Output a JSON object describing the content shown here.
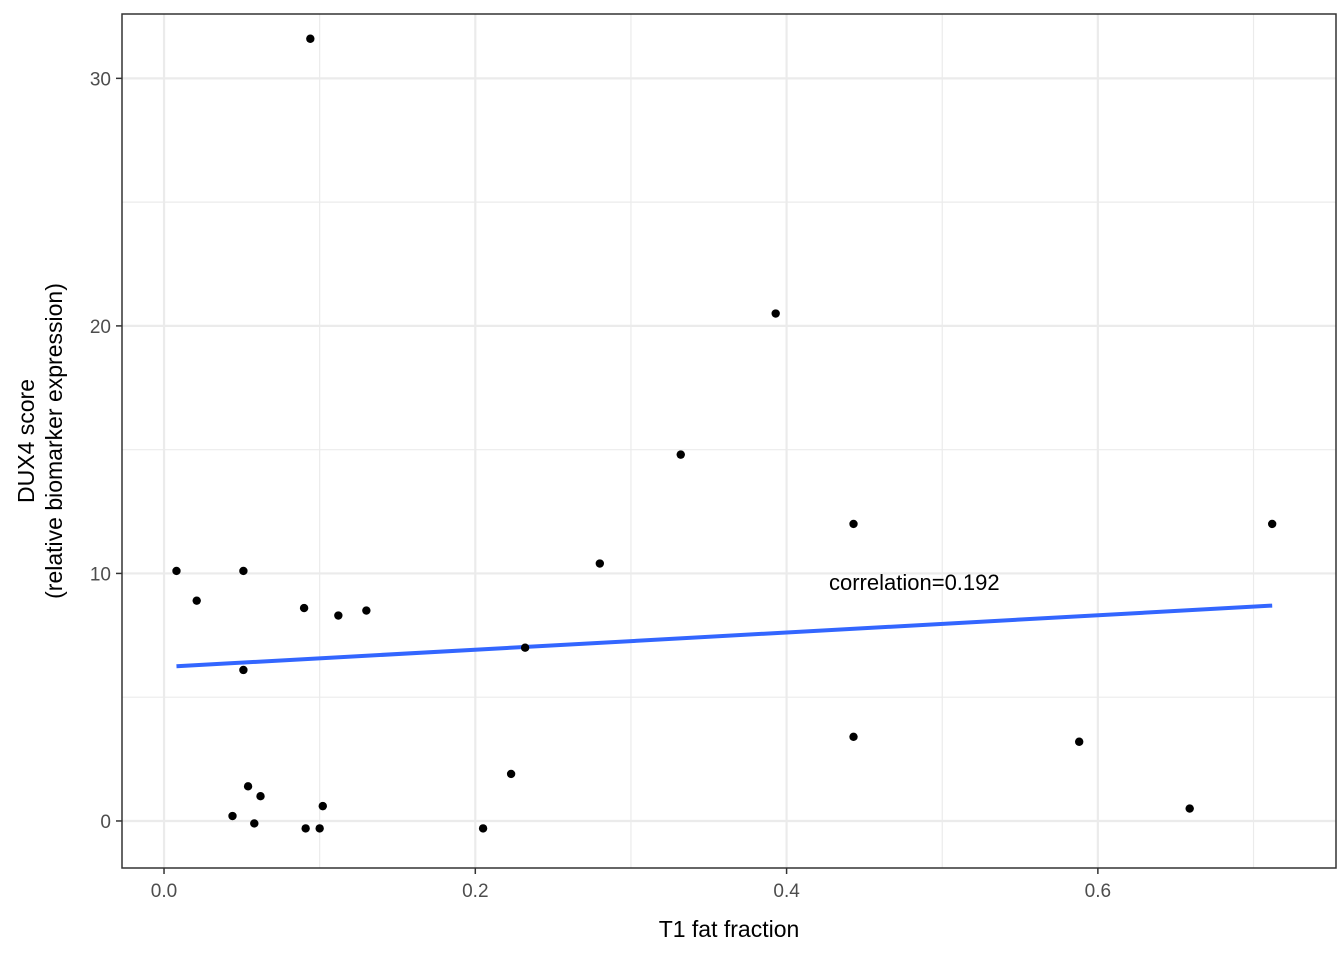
{
  "chart_data": {
    "type": "scatter",
    "xlabel": "T1 fat fraction",
    "ylabel_line1": "DUX4 score",
    "ylabel_line2": "(relative biomarker expression)",
    "annotation": "correlation=0.192",
    "x_ticks": [
      0.0,
      0.2,
      0.4,
      0.6
    ],
    "x_tick_labels": [
      "0.0",
      "0.2",
      "0.4",
      "0.6"
    ],
    "y_ticks": [
      0,
      10,
      20,
      30
    ],
    "y_tick_labels": [
      "0",
      "10",
      "20",
      "30"
    ],
    "xlim": [
      -0.027,
      0.753
    ],
    "ylim": [
      -1.9,
      32.6
    ],
    "grid": true,
    "points": [
      {
        "x": 0.008,
        "y": 10.1
      },
      {
        "x": 0.021,
        "y": 8.9
      },
      {
        "x": 0.044,
        "y": 0.2
      },
      {
        "x": 0.051,
        "y": 10.1
      },
      {
        "x": 0.051,
        "y": 6.1
      },
      {
        "x": 0.054,
        "y": 1.4
      },
      {
        "x": 0.058,
        "y": -0.1
      },
      {
        "x": 0.062,
        "y": 1.0
      },
      {
        "x": 0.09,
        "y": 8.6
      },
      {
        "x": 0.091,
        "y": -0.3
      },
      {
        "x": 0.094,
        "y": 31.6
      },
      {
        "x": 0.1,
        "y": -0.3
      },
      {
        "x": 0.102,
        "y": 0.6
      },
      {
        "x": 0.112,
        "y": 8.3
      },
      {
        "x": 0.13,
        "y": 8.5
      },
      {
        "x": 0.205,
        "y": -0.3
      },
      {
        "x": 0.223,
        "y": 1.9
      },
      {
        "x": 0.232,
        "y": 7.0
      },
      {
        "x": 0.28,
        "y": 10.4
      },
      {
        "x": 0.332,
        "y": 14.8
      },
      {
        "x": 0.393,
        "y": 20.5
      },
      {
        "x": 0.443,
        "y": 12.0
      },
      {
        "x": 0.443,
        "y": 3.4
      },
      {
        "x": 0.588,
        "y": 3.2
      },
      {
        "x": 0.659,
        "y": 0.5
      },
      {
        "x": 0.712,
        "y": 12.0
      }
    ],
    "trend_line": {
      "color": "#3366ff",
      "points": [
        {
          "x": 0.008,
          "y": 6.25
        },
        {
          "x": 0.712,
          "y": 8.7
        }
      ]
    },
    "point_color": "#000000"
  }
}
